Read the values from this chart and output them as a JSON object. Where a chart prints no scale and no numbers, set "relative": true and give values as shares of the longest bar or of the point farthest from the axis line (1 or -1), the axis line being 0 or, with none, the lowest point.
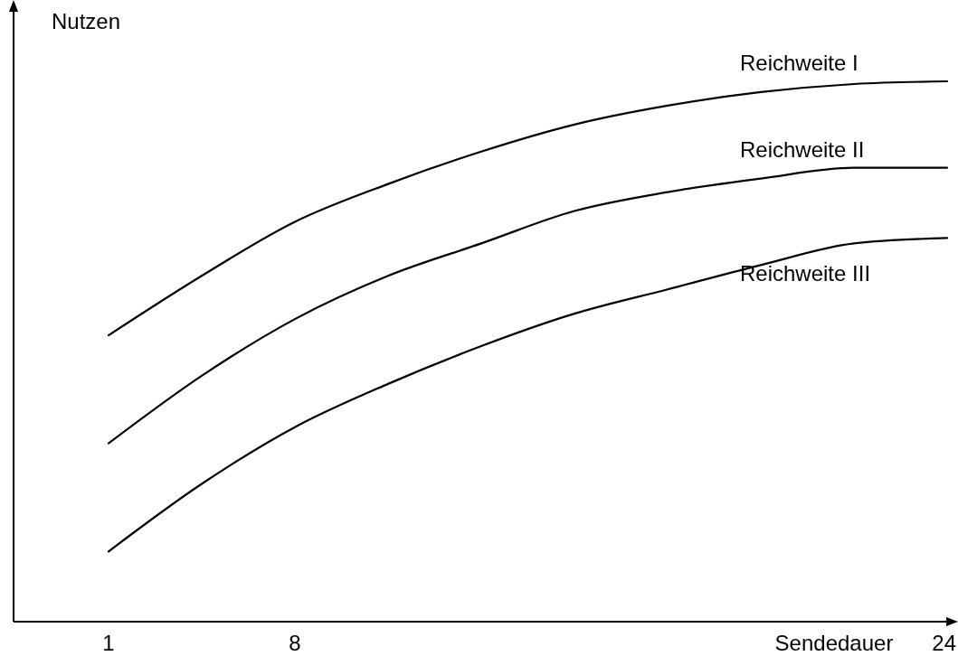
{
  "chart_data": {
    "type": "line",
    "relative": true,
    "xlabel": "Sendedauer",
    "ylabel": "Nutzen",
    "legend": false,
    "marker": "none",
    "line_style": "solid",
    "grid": false,
    "tick_labels": "x",
    "categories": [
      "1",
      null,
      "8",
      null,
      null,
      null,
      null,
      null,
      null,
      "24"
    ],
    "series": [
      {
        "name": "Reichweite I",
        "color": "#000000",
        "values": [
          0.53,
          0.64,
          0.74,
          0.81,
          0.87,
          0.92,
          0.955,
          0.98,
          0.995,
          1
        ]
      },
      {
        "name": "Reichweite II",
        "color": "#000000",
        "values": [
          0.33,
          0.455,
          0.56,
          0.64,
          0.7,
          0.76,
          0.795,
          0.82,
          0.84,
          0.84
        ]
      },
      {
        "name": "Reichweite III",
        "color": "#000000",
        "values": [
          0.13,
          0.255,
          0.36,
          0.44,
          0.51,
          0.57,
          0.615,
          0.66,
          0.7,
          0.71
        ]
      }
    ]
  }
}
